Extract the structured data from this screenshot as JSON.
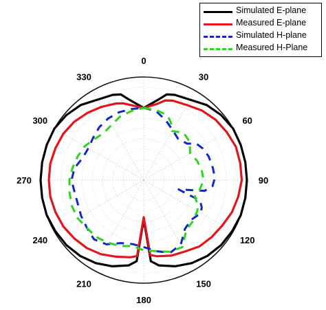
{
  "chart_data": {
    "type": "polar-line",
    "angle_labels": [
      "0",
      "30",
      "60",
      "90",
      "120",
      "150",
      "180",
      "210",
      "240",
      "270",
      "300",
      "330"
    ],
    "angle_direction": "clockwise, 0 at top",
    "radial_range": [
      0,
      1
    ],
    "grid": true,
    "legend_position": "top-right",
    "series": [
      {
        "name": "Simulated E-plane",
        "color": "#000000",
        "style": "solid",
        "angles": [
          0,
          10,
          15,
          20,
          30,
          40,
          50,
          60,
          70,
          80,
          90,
          100,
          110,
          120,
          130,
          140,
          150,
          160,
          170,
          175,
          180,
          185,
          190,
          200,
          210,
          220,
          230,
          240,
          250,
          260,
          270,
          280,
          290,
          300,
          310,
          320,
          330,
          340,
          345,
          350,
          360
        ],
        "r": [
          0.7,
          0.79,
          0.86,
          0.88,
          0.9,
          0.95,
          0.98,
          1.0,
          1.0,
          1.0,
          1.0,
          1.0,
          1.0,
          0.99,
          0.98,
          0.96,
          0.93,
          0.89,
          0.84,
          0.79,
          0.38,
          0.79,
          0.84,
          0.89,
          0.93,
          0.96,
          0.98,
          0.99,
          1.0,
          1.0,
          1.0,
          1.0,
          1.0,
          1.0,
          0.98,
          0.95,
          0.9,
          0.88,
          0.86,
          0.79,
          0.7
        ]
      },
      {
        "name": "Measured E-plane",
        "color": "#e3141b",
        "style": "solid",
        "angles": [
          0,
          10,
          15,
          20,
          30,
          40,
          50,
          60,
          70,
          80,
          90,
          100,
          110,
          120,
          130,
          140,
          150,
          160,
          170,
          175,
          180,
          185,
          190,
          200,
          210,
          220,
          230,
          240,
          250,
          260,
          270,
          280,
          290,
          300,
          310,
          320,
          330,
          340,
          345,
          350,
          360
        ],
        "r": [
          0.7,
          0.75,
          0.8,
          0.82,
          0.84,
          0.88,
          0.91,
          0.93,
          0.95,
          0.95,
          0.95,
          0.93,
          0.91,
          0.88,
          0.86,
          0.84,
          0.8,
          0.78,
          0.75,
          0.73,
          0.36,
          0.74,
          0.76,
          0.79,
          0.83,
          0.86,
          0.88,
          0.9,
          0.91,
          0.92,
          0.92,
          0.92,
          0.91,
          0.9,
          0.88,
          0.85,
          0.82,
          0.79,
          0.77,
          0.74,
          0.7
        ]
      },
      {
        "name": "Simulated H-plane",
        "color": "#1426c8",
        "style": "dashed",
        "angles": [
          0,
          10,
          20,
          30,
          40,
          50,
          55,
          62,
          70,
          80,
          88,
          95,
          100,
          105,
          110,
          115,
          120,
          130,
          140,
          150,
          160,
          170,
          180,
          190,
          200,
          210,
          220,
          230,
          240,
          250,
          260,
          270,
          280,
          290,
          300,
          310,
          320,
          330,
          340,
          350,
          360
        ],
        "r": [
          0.7,
          0.68,
          0.62,
          0.56,
          0.52,
          0.55,
          0.62,
          0.65,
          0.67,
          0.68,
          0.69,
          0.67,
          0.6,
          0.35,
          0.58,
          0.62,
          0.64,
          0.6,
          0.62,
          0.72,
          0.75,
          0.7,
          0.65,
          0.63,
          0.65,
          0.72,
          0.75,
          0.72,
          0.7,
          0.68,
          0.68,
          0.7,
          0.68,
          0.63,
          0.62,
          0.64,
          0.67,
          0.69,
          0.7,
          0.7,
          0.7
        ]
      },
      {
        "name": "Measured H-Plane",
        "color": "#2fd41f",
        "style": "dashed",
        "angles": [
          0,
          10,
          20,
          25,
          30,
          40,
          50,
          60,
          70,
          80,
          90,
          100,
          108,
          115,
          120,
          130,
          140,
          150,
          160,
          170,
          180,
          190,
          200,
          210,
          220,
          230,
          240,
          250,
          260,
          270,
          280,
          290,
          300,
          310,
          320,
          330,
          340,
          350,
          360
        ],
        "r": [
          0.7,
          0.69,
          0.67,
          0.62,
          0.55,
          0.6,
          0.58,
          0.52,
          0.55,
          0.57,
          0.58,
          0.55,
          0.52,
          0.58,
          0.6,
          0.62,
          0.64,
          0.75,
          0.74,
          0.7,
          0.68,
          0.65,
          0.68,
          0.7,
          0.72,
          0.72,
          0.74,
          0.74,
          0.73,
          0.72,
          0.7,
          0.68,
          0.66,
          0.62,
          0.6,
          0.62,
          0.66,
          0.68,
          0.7
        ]
      }
    ]
  }
}
